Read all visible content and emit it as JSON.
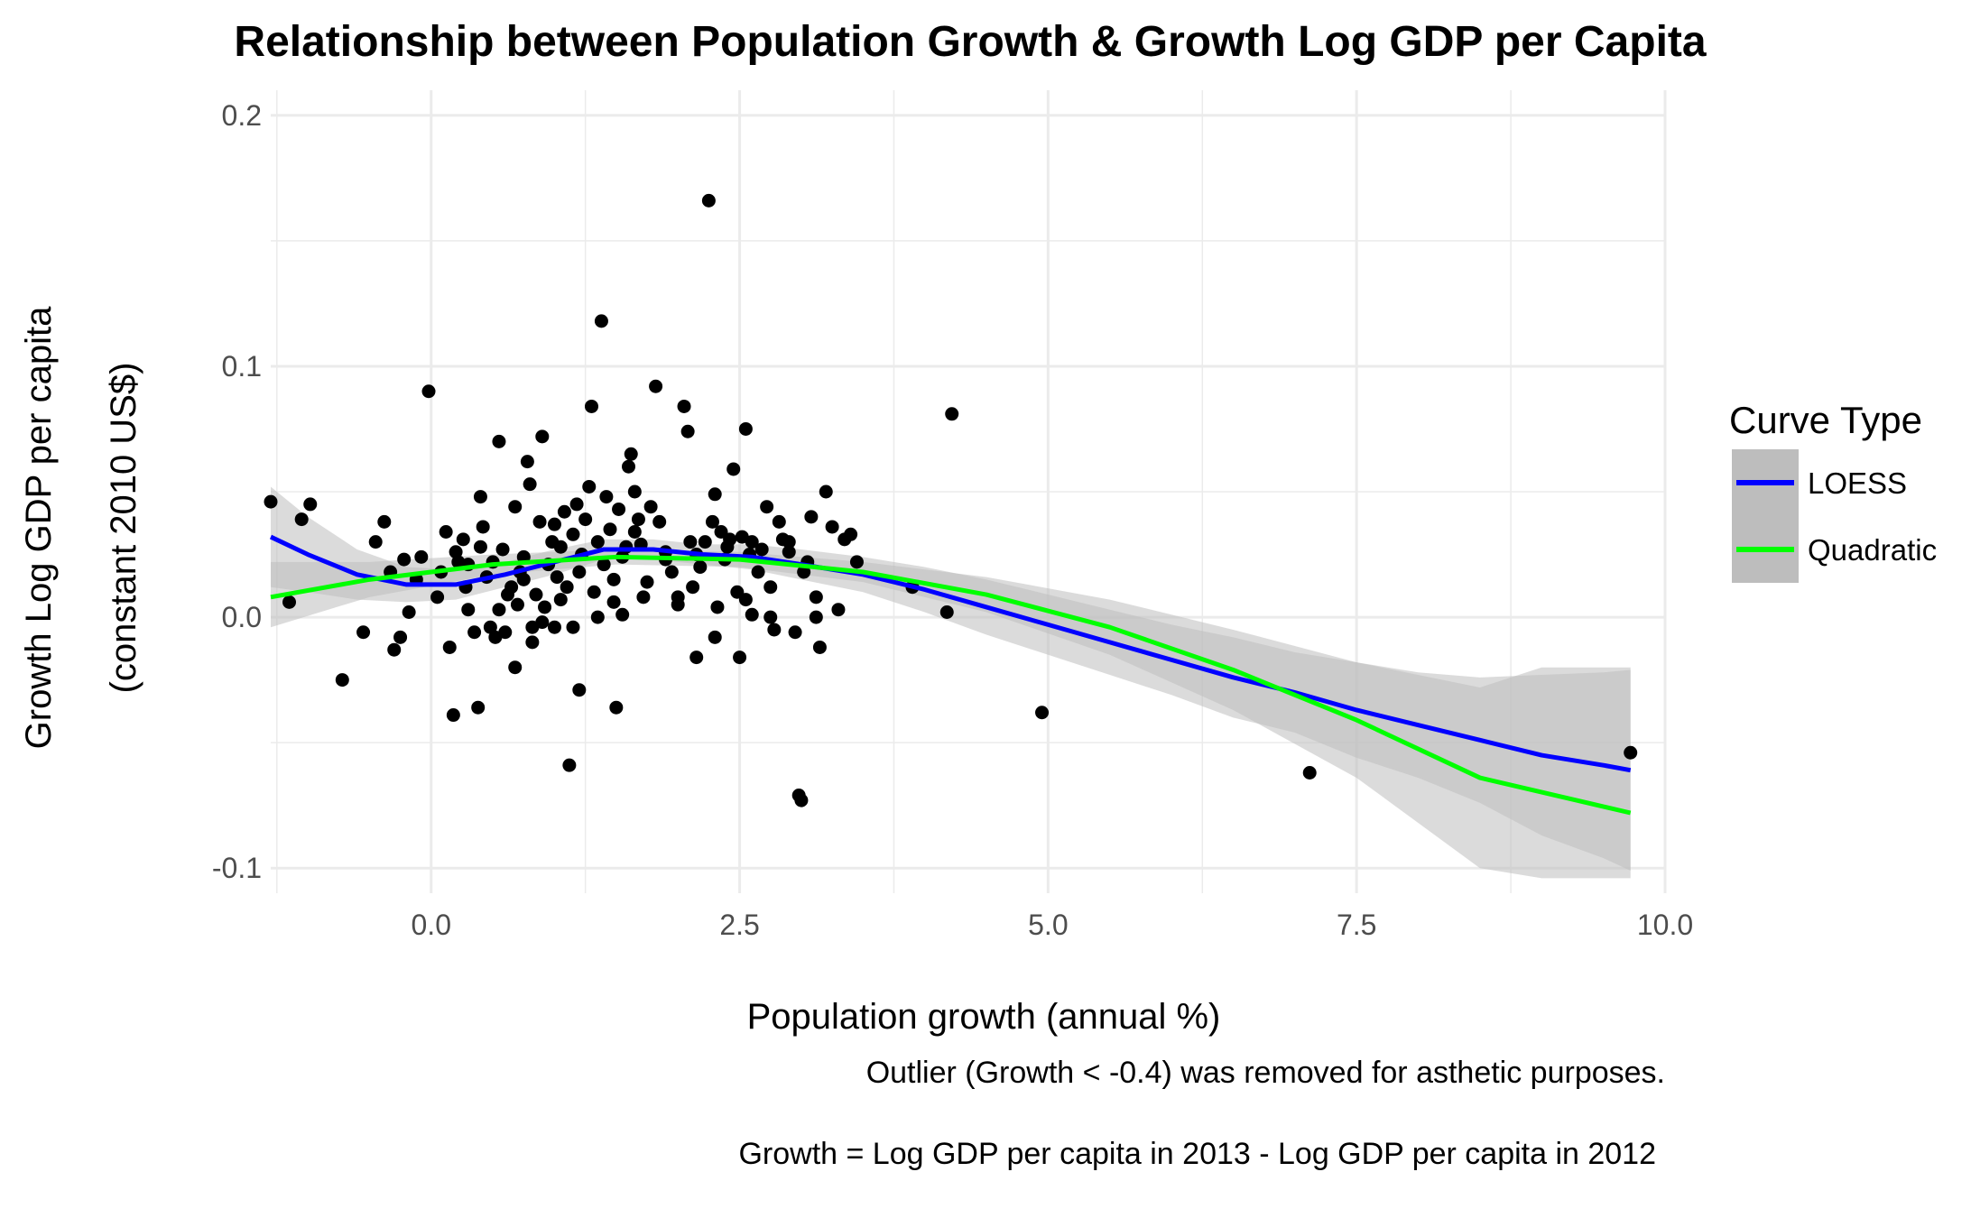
{
  "chart_data": {
    "type": "scatter",
    "title": "Relationship between Population Growth & Growth Log GDP per Capita",
    "xlabel": "Population growth (annual %)",
    "ylabel_lines": [
      "Growth Log GDP per capita",
      "(constant 2010 US$)"
    ],
    "captions": [
      "Outlier (Growth < -0.4) was removed for asthetic purposes.",
      "Growth = Log GDP per capita in 2013 - Log GDP per capita in 2012"
    ],
    "xlim": [
      -1.3,
      10.0
    ],
    "ylim": [
      -0.11,
      0.21
    ],
    "x_ticks": [
      0.0,
      2.5,
      5.0,
      7.5,
      10.0
    ],
    "x_tick_labels": [
      "0.0",
      "2.5",
      "5.0",
      "7.5",
      "10.0"
    ],
    "y_ticks": [
      -0.1,
      0.0,
      0.1,
      0.2
    ],
    "y_tick_labels": [
      "-0.1",
      "0.0",
      "0.1",
      "0.2"
    ],
    "grid": true,
    "legend": {
      "title": "Curve Type",
      "position": "right",
      "entries": [
        {
          "label": "LOESS",
          "color": "#0000ff"
        },
        {
          "label": "Quadratic",
          "color": "#00ff00"
        }
      ]
    },
    "colors": {
      "points": "#000000",
      "ribbon": "#bdbdbd",
      "grid": "#ebebeb"
    },
    "points": [
      [
        -1.3,
        0.046
      ],
      [
        -1.15,
        0.006
      ],
      [
        -1.05,
        0.039
      ],
      [
        -0.98,
        0.045
      ],
      [
        -0.72,
        -0.025
      ],
      [
        -0.55,
        -0.006
      ],
      [
        -0.45,
        0.03
      ],
      [
        -0.38,
        0.038
      ],
      [
        -0.33,
        0.018
      ],
      [
        -0.3,
        -0.013
      ],
      [
        -0.25,
        -0.008
      ],
      [
        -0.22,
        0.023
      ],
      [
        -0.18,
        0.002
      ],
      [
        -0.12,
        0.015
      ],
      [
        -0.08,
        0.024
      ],
      [
        -0.02,
        0.09
      ],
      [
        0.05,
        0.008
      ],
      [
        0.08,
        0.018
      ],
      [
        0.12,
        0.034
      ],
      [
        0.15,
        -0.012
      ],
      [
        0.2,
        0.026
      ],
      [
        0.22,
        0.022
      ],
      [
        0.18,
        -0.039
      ],
      [
        0.26,
        0.031
      ],
      [
        0.28,
        0.012
      ],
      [
        0.3,
        0.003
      ],
      [
        0.35,
        -0.006
      ],
      [
        0.4,
        0.048
      ],
      [
        0.38,
        -0.036
      ],
      [
        0.42,
        0.036
      ],
      [
        0.45,
        0.016
      ],
      [
        0.48,
        -0.004
      ],
      [
        0.5,
        0.022
      ],
      [
        0.52,
        -0.008
      ],
      [
        0.55,
        0.07
      ],
      [
        0.58,
        0.027
      ],
      [
        0.6,
        -0.006
      ],
      [
        0.62,
        0.009
      ],
      [
        0.65,
        0.012
      ],
      [
        0.68,
        0.044
      ],
      [
        0.7,
        0.005
      ],
      [
        0.72,
        0.018
      ],
      [
        0.75,
        0.024
      ],
      [
        0.78,
        0.062
      ],
      [
        0.8,
        0.053
      ],
      [
        0.82,
        -0.01
      ],
      [
        0.85,
        0.009
      ],
      [
        0.88,
        0.038
      ],
      [
        0.9,
        0.072
      ],
      [
        0.92,
        0.004
      ],
      [
        0.95,
        0.021
      ],
      [
        0.98,
        0.03
      ],
      [
        1.0,
        0.037
      ],
      [
        1.02,
        0.016
      ],
      [
        1.05,
        0.028
      ],
      [
        1.08,
        0.042
      ],
      [
        1.1,
        0.012
      ],
      [
        1.12,
        -0.059
      ],
      [
        1.15,
        0.033
      ],
      [
        1.18,
        0.045
      ],
      [
        1.2,
        0.018
      ],
      [
        1.22,
        0.025
      ],
      [
        1.25,
        0.039
      ],
      [
        1.28,
        0.052
      ],
      [
        1.3,
        0.084
      ],
      [
        1.32,
        0.01
      ],
      [
        1.35,
        0.03
      ],
      [
        1.38,
        0.118
      ],
      [
        1.4,
        0.021
      ],
      [
        1.42,
        0.048
      ],
      [
        1.45,
        0.035
      ],
      [
        1.48,
        0.015
      ],
      [
        1.5,
        -0.036
      ],
      [
        1.52,
        0.043
      ],
      [
        1.55,
        0.024
      ],
      [
        1.58,
        0.028
      ],
      [
        1.6,
        0.06
      ],
      [
        1.62,
        0.065
      ],
      [
        1.65,
        0.05
      ],
      [
        1.68,
        0.039
      ],
      [
        1.7,
        0.029
      ],
      [
        1.75,
        0.014
      ],
      [
        1.78,
        0.044
      ],
      [
        1.82,
        0.092
      ],
      [
        1.85,
        0.038
      ],
      [
        1.9,
        0.023
      ],
      [
        1.95,
        0.018
      ],
      [
        2.0,
        0.008
      ],
      [
        2.05,
        0.084
      ],
      [
        2.08,
        0.074
      ],
      [
        2.1,
        0.03
      ],
      [
        2.12,
        0.012
      ],
      [
        2.15,
        -0.016
      ],
      [
        2.18,
        0.02
      ],
      [
        2.22,
        0.03
      ],
      [
        2.25,
        0.166
      ],
      [
        2.28,
        0.038
      ],
      [
        2.3,
        0.049
      ],
      [
        2.32,
        0.004
      ],
      [
        2.35,
        0.034
      ],
      [
        2.38,
        0.023
      ],
      [
        2.4,
        0.028
      ],
      [
        2.42,
        0.031
      ],
      [
        2.45,
        0.059
      ],
      [
        2.48,
        0.01
      ],
      [
        2.5,
        -0.016
      ],
      [
        2.52,
        0.032
      ],
      [
        2.55,
        0.075
      ],
      [
        2.58,
        0.025
      ],
      [
        2.6,
        0.03
      ],
      [
        2.65,
        0.018
      ],
      [
        2.68,
        0.027
      ],
      [
        2.72,
        0.044
      ],
      [
        2.75,
        0.012
      ],
      [
        2.78,
        -0.005
      ],
      [
        2.82,
        0.038
      ],
      [
        2.85,
        0.031
      ],
      [
        2.9,
        0.026
      ],
      [
        2.95,
        -0.006
      ],
      [
        2.98,
        -0.071
      ],
      [
        3.0,
        -0.073
      ],
      [
        3.02,
        0.018
      ],
      [
        3.05,
        0.022
      ],
      [
        3.08,
        0.04
      ],
      [
        3.12,
        0.008
      ],
      [
        3.15,
        -0.012
      ],
      [
        3.2,
        0.05
      ],
      [
        3.25,
        0.036
      ],
      [
        3.3,
        0.003
      ],
      [
        3.35,
        0.031
      ],
      [
        3.4,
        0.033
      ],
      [
        3.45,
        0.022
      ],
      [
        3.9,
        0.012
      ],
      [
        4.18,
        0.002
      ],
      [
        4.22,
        0.081
      ],
      [
        4.95,
        -0.038
      ],
      [
        7.12,
        -0.062
      ],
      [
        9.72,
        -0.054
      ],
      [
        0.3,
        0.021
      ],
      [
        0.9,
        -0.002
      ],
      [
        1.05,
        0.007
      ],
      [
        1.35,
        0.0
      ],
      [
        1.72,
        0.008
      ],
      [
        2.0,
        0.005
      ],
      [
        2.3,
        -0.008
      ],
      [
        2.75,
        0.0
      ],
      [
        3.12,
        0.0
      ],
      [
        0.68,
        -0.02
      ],
      [
        1.2,
        -0.029
      ],
      [
        1.0,
        -0.004
      ],
      [
        0.55,
        0.003
      ],
      [
        1.9,
        0.026
      ],
      [
        2.6,
        0.001
      ],
      [
        1.55,
        0.001
      ],
      [
        0.75,
        0.015
      ],
      [
        2.15,
        0.025
      ],
      [
        1.15,
        -0.004
      ],
      [
        0.4,
        0.028
      ],
      [
        2.9,
        0.03
      ],
      [
        1.65,
        0.034
      ],
      [
        0.82,
        -0.004
      ],
      [
        1.48,
        0.006
      ],
      [
        2.55,
        0.007
      ]
    ],
    "loess_curve": [
      [
        -1.3,
        0.032
      ],
      [
        -1.0,
        0.025
      ],
      [
        -0.6,
        0.017
      ],
      [
        -0.2,
        0.013
      ],
      [
        0.2,
        0.013
      ],
      [
        0.6,
        0.017
      ],
      [
        1.0,
        0.022
      ],
      [
        1.4,
        0.027
      ],
      [
        1.8,
        0.027
      ],
      [
        2.2,
        0.025
      ],
      [
        2.6,
        0.024
      ],
      [
        3.0,
        0.021
      ],
      [
        3.5,
        0.017
      ],
      [
        4.0,
        0.011
      ],
      [
        4.5,
        0.004
      ],
      [
        5.0,
        -0.003
      ],
      [
        5.5,
        -0.01
      ],
      [
        6.0,
        -0.017
      ],
      [
        6.5,
        -0.024
      ],
      [
        7.0,
        -0.03
      ],
      [
        7.5,
        -0.037
      ],
      [
        8.0,
        -0.043
      ],
      [
        8.5,
        -0.049
      ],
      [
        9.0,
        -0.055
      ],
      [
        9.5,
        -0.059
      ],
      [
        9.72,
        -0.061
      ]
    ],
    "loess_ci_upper": [
      [
        -1.3,
        0.052
      ],
      [
        -1.0,
        0.04
      ],
      [
        -0.6,
        0.027
      ],
      [
        -0.2,
        0.02
      ],
      [
        0.2,
        0.019
      ],
      [
        0.6,
        0.022
      ],
      [
        1.0,
        0.027
      ],
      [
        1.4,
        0.031
      ],
      [
        1.8,
        0.031
      ],
      [
        2.2,
        0.029
      ],
      [
        2.6,
        0.029
      ],
      [
        3.0,
        0.027
      ],
      [
        3.5,
        0.024
      ],
      [
        4.0,
        0.02
      ],
      [
        4.5,
        0.015
      ],
      [
        5.0,
        0.009
      ],
      [
        5.5,
        0.003
      ],
      [
        6.0,
        -0.003
      ],
      [
        6.5,
        -0.008
      ],
      [
        7.0,
        -0.014
      ],
      [
        7.5,
        -0.018
      ],
      [
        8.0,
        -0.022
      ],
      [
        8.5,
        -0.024
      ],
      [
        9.0,
        -0.023
      ],
      [
        9.5,
        -0.022
      ],
      [
        9.72,
        -0.021
      ]
    ],
    "loess_ci_lower": [
      [
        -1.3,
        0.012
      ],
      [
        -1.0,
        0.01
      ],
      [
        -0.6,
        0.007
      ],
      [
        -0.2,
        0.006
      ],
      [
        0.2,
        0.007
      ],
      [
        0.6,
        0.012
      ],
      [
        1.0,
        0.017
      ],
      [
        1.4,
        0.023
      ],
      [
        1.8,
        0.023
      ],
      [
        2.2,
        0.021
      ],
      [
        2.6,
        0.019
      ],
      [
        3.0,
        0.015
      ],
      [
        3.5,
        0.01
      ],
      [
        4.0,
        0.002
      ],
      [
        4.5,
        -0.007
      ],
      [
        5.0,
        -0.015
      ],
      [
        5.5,
        -0.023
      ],
      [
        6.0,
        -0.031
      ],
      [
        6.5,
        -0.04
      ],
      [
        7.0,
        -0.046
      ],
      [
        7.5,
        -0.056
      ],
      [
        8.0,
        -0.064
      ],
      [
        8.5,
        -0.074
      ],
      [
        9.0,
        -0.087
      ],
      [
        9.5,
        -0.096
      ],
      [
        9.72,
        -0.101
      ]
    ],
    "quadratic_curve": [
      [
        -1.3,
        0.008
      ],
      [
        -0.5,
        0.015
      ],
      [
        0.5,
        0.021
      ],
      [
        1.5,
        0.024
      ],
      [
        2.5,
        0.023
      ],
      [
        3.5,
        0.018
      ],
      [
        4.5,
        0.009
      ],
      [
        5.5,
        -0.004
      ],
      [
        6.5,
        -0.021
      ],
      [
        7.5,
        -0.041
      ],
      [
        8.5,
        -0.064
      ],
      [
        9.72,
        -0.078
      ]
    ],
    "quadratic_ci_upper": [
      [
        -1.3,
        0.022
      ],
      [
        -0.5,
        0.022
      ],
      [
        0.5,
        0.025
      ],
      [
        1.5,
        0.027
      ],
      [
        2.5,
        0.026
      ],
      [
        3.5,
        0.022
      ],
      [
        4.5,
        0.016
      ],
      [
        5.5,
        0.007
      ],
      [
        6.5,
        -0.005
      ],
      [
        7.5,
        -0.018
      ],
      [
        8.5,
        -0.028
      ],
      [
        9.0,
        -0.02
      ],
      [
        9.72,
        -0.02
      ]
    ],
    "quadratic_ci_lower": [
      [
        -1.3,
        -0.004
      ],
      [
        -0.5,
        0.008
      ],
      [
        0.5,
        0.017
      ],
      [
        1.5,
        0.021
      ],
      [
        2.5,
        0.02
      ],
      [
        3.5,
        0.014
      ],
      [
        4.5,
        0.002
      ],
      [
        5.5,
        -0.015
      ],
      [
        6.5,
        -0.037
      ],
      [
        7.5,
        -0.064
      ],
      [
        8.5,
        -0.1
      ],
      [
        9.0,
        -0.104
      ],
      [
        9.72,
        -0.104
      ]
    ]
  }
}
